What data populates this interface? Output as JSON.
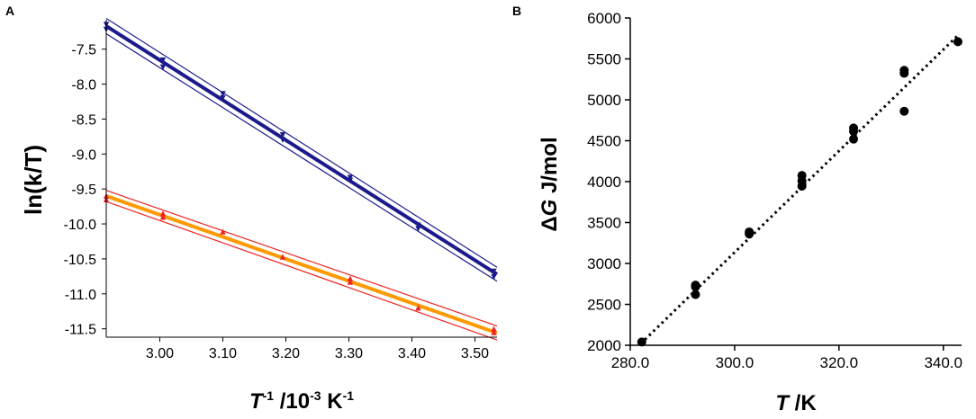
{
  "chart_data": [
    {
      "type": "line",
      "panel_label": "A",
      "title": "",
      "xlabel_main": "T",
      "xlabel_sup1": "-1",
      "xlabel_mid": " /10",
      "xlabel_sup2": "-3",
      "xlabel_unit": " K",
      "xlabel_sup3": "-1",
      "ylabel": "ln(k/T)",
      "xlim": [
        2.915,
        3.535
      ],
      "ylim": [
        -11.62,
        -7.08
      ],
      "grid": false,
      "x_ticks": [
        3.0,
        3.1,
        3.2,
        3.3,
        3.4,
        3.5
      ],
      "x_tick_labels": [
        "3.00",
        "3.10",
        "3.20",
        "3.30",
        "3.40",
        "3.50"
      ],
      "y_ticks": [
        -7.5,
        -8.0,
        -8.5,
        -9.0,
        -9.5,
        -10.0,
        -10.5,
        -11.0,
        -11.5
      ],
      "y_tick_labels": [
        "-7.5",
        "-8.0",
        "-8.5",
        "-9.0",
        "-9.5",
        "-10.0",
        "-10.5",
        "-11.0",
        "-11.5"
      ],
      "series": [
        {
          "name": "blue series",
          "color": "#1a1a8c",
          "band_color": "#1a1a8c",
          "marker": "triangle-down",
          "points": [
            {
              "x": 2.915,
              "y": -7.15
            },
            {
              "x": 2.915,
              "y": -7.22
            },
            {
              "x": 3.005,
              "y": -7.66
            },
            {
              "x": 3.005,
              "y": -7.76
            },
            {
              "x": 3.1,
              "y": -8.14
            },
            {
              "x": 3.1,
              "y": -8.2
            },
            {
              "x": 3.195,
              "y": -8.73
            },
            {
              "x": 3.195,
              "y": -8.8
            },
            {
              "x": 3.302,
              "y": -9.34
            },
            {
              "x": 3.302,
              "y": -9.38
            },
            {
              "x": 3.41,
              "y": -10.02
            },
            {
              "x": 3.41,
              "y": -10.07
            },
            {
              "x": 3.53,
              "y": -10.68
            },
            {
              "x": 3.53,
              "y": -10.76
            }
          ],
          "fit": {
            "x": [
              2.915,
              3.535
            ],
            "y": [
              -7.17,
              -10.72
            ]
          },
          "band_upper": {
            "x": [
              2.915,
              3.535
            ],
            "y": [
              -7.06,
              -10.62
            ]
          },
          "band_lower": {
            "x": [
              2.915,
              3.535
            ],
            "y": [
              -7.28,
              -10.82
            ]
          }
        },
        {
          "name": "orange series",
          "color": "#ff9900",
          "band_color": "#ee2222",
          "marker": "triangle-up",
          "points": [
            {
              "x": 2.915,
              "y": -9.6
            },
            {
              "x": 2.915,
              "y": -9.65
            },
            {
              "x": 3.005,
              "y": -9.85
            },
            {
              "x": 3.005,
              "y": -9.9
            },
            {
              "x": 3.1,
              "y": -10.11
            },
            {
              "x": 3.195,
              "y": -10.47
            },
            {
              "x": 3.302,
              "y": -10.78
            },
            {
              "x": 3.302,
              "y": -10.83
            },
            {
              "x": 3.41,
              "y": -11.2
            },
            {
              "x": 3.53,
              "y": -11.5
            },
            {
              "x": 3.53,
              "y": -11.55
            }
          ],
          "fit": {
            "x": [
              2.915,
              3.535
            ],
            "y": [
              -9.6,
              -11.56
            ]
          },
          "band_upper": {
            "x": [
              2.915,
              3.535
            ],
            "y": [
              -9.52,
              -11.46
            ]
          },
          "band_lower": {
            "x": [
              2.915,
              3.535
            ],
            "y": [
              -9.68,
              -11.66
            ]
          }
        }
      ]
    },
    {
      "type": "scatter",
      "panel_label": "B",
      "title": "",
      "xlabel_main": "T",
      "xlabel_unit": " /K",
      "ylabel_delta": "Δ",
      "ylabel_main": "G",
      "ylabel_unit": " J/mol",
      "xlim": [
        280.0,
        343.5
      ],
      "ylim": [
        2000,
        6000
      ],
      "grid": false,
      "x_ticks": [
        280.0,
        300.0,
        320.0,
        340.0
      ],
      "x_tick_labels": [
        "280.0",
        "300.0",
        "320.0",
        "340.0"
      ],
      "y_ticks": [
        2000,
        2500,
        3000,
        3500,
        4000,
        4500,
        5000,
        5500,
        6000
      ],
      "y_tick_labels": [
        "2000",
        "2500",
        "3000",
        "3500",
        "4000",
        "4500",
        "5000",
        "5500",
        "6000"
      ],
      "points": [
        {
          "x": 282.2,
          "y": 2040
        },
        {
          "x": 292.5,
          "y": 2620
        },
        {
          "x": 292.5,
          "y": 2715
        },
        {
          "x": 292.5,
          "y": 2735
        },
        {
          "x": 302.8,
          "y": 3360
        },
        {
          "x": 302.8,
          "y": 3385
        },
        {
          "x": 312.9,
          "y": 3945
        },
        {
          "x": 312.9,
          "y": 4010
        },
        {
          "x": 312.9,
          "y": 4075
        },
        {
          "x": 322.8,
          "y": 4520
        },
        {
          "x": 322.8,
          "y": 4615
        },
        {
          "x": 322.8,
          "y": 4655
        },
        {
          "x": 332.5,
          "y": 4860
        },
        {
          "x": 332.5,
          "y": 5325
        },
        {
          "x": 332.5,
          "y": 5360
        },
        {
          "x": 342.8,
          "y": 5710
        }
      ],
      "trendline": {
        "x": [
          282.0,
          343.0
        ],
        "y": [
          2020,
          5800
        ],
        "style": "dotted"
      },
      "color": "#000000"
    }
  ]
}
